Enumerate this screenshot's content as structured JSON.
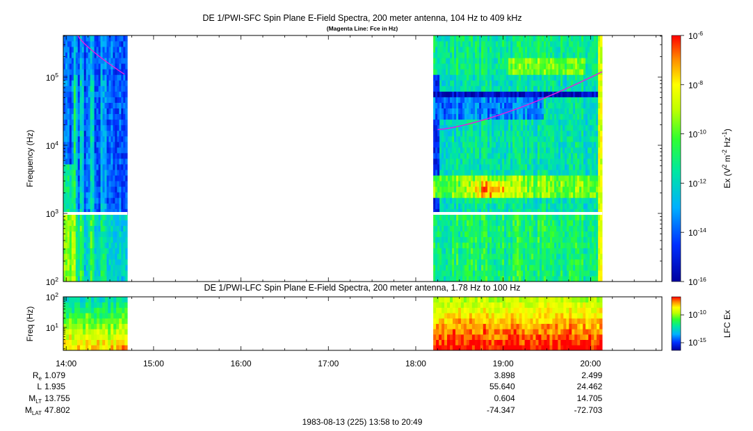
{
  "chart_data": [
    {
      "type": "heatmap",
      "title": "DE 1/PWI-SFC  Spin Plane E-Field Spectra, 200 meter antenna, 104 Hz to 409 kHz",
      "subtitle": "(Magenta Line: Fce in Hz)",
      "ylabel": "Frequency (Hz)",
      "yscale": "log",
      "ylim": [
        100,
        409000
      ],
      "ytick_labels": [
        {
          "base": "10",
          "exp": "2"
        },
        {
          "base": "10",
          "exp": "3"
        },
        {
          "base": "10",
          "exp": "4"
        },
        {
          "base": "10",
          "exp": "5"
        }
      ],
      "colorbar": {
        "label_parts": [
          "Ex (V",
          "2",
          " m",
          "-2",
          " Hz",
          "-1",
          ")"
        ],
        "scale": "log",
        "range": [
          1e-16,
          1e-06
        ],
        "tick_labels": [
          {
            "base": "10",
            "exp": "-6"
          },
          {
            "base": "10",
            "exp": "-8"
          },
          {
            "base": "10",
            "exp": "-10"
          },
          {
            "base": "10",
            "exp": "-12"
          },
          {
            "base": "10",
            "exp": "-14"
          },
          {
            "base": "10",
            "exp": "-16"
          }
        ]
      },
      "data_coverage_utc": [
        [
          "13:58",
          "14:42"
        ],
        [
          "18:12",
          "20:08"
        ]
      ],
      "fce_line": {
        "color": "#e020e0",
        "segments": [
          {
            "t": [
              "14:08",
              "14:40"
            ],
            "freq_hz": [
              409000,
              110000
            ]
          },
          {
            "t": [
              "18:15",
              "20:08"
            ],
            "freq_hz": [
              17000,
              120000
            ]
          }
        ]
      }
    },
    {
      "type": "heatmap",
      "title": "DE 1/PWI-LFC  Spin Plane E-Field Spectra, 200 meter antenna, 1.78 Hz to 100 Hz",
      "ylabel": "Freq (Hz)",
      "yscale": "log",
      "ylim": [
        1.78,
        100
      ],
      "ytick_labels": [
        {
          "base": "10",
          "exp": "1"
        },
        {
          "base": "10",
          "exp": "2"
        }
      ],
      "colorbar": {
        "label": "LFC Ex",
        "scale": "log",
        "tick_labels": [
          {
            "base": "10",
            "exp": "-10"
          },
          {
            "base": "10",
            "exp": "-15"
          }
        ]
      },
      "data_coverage_utc": [
        [
          "13:58",
          "14:42"
        ],
        [
          "18:12",
          "20:08"
        ]
      ]
    }
  ],
  "x_axis": {
    "start": "13:58",
    "end": "20:49",
    "tick_labels": [
      "14:00",
      "15:00",
      "16:00",
      "17:00",
      "18:00",
      "19:00",
      "20:00"
    ]
  },
  "ephemeris": {
    "columns": [
      "14:00",
      "19:00",
      "20:00"
    ],
    "rows": [
      {
        "label": "R",
        "sub": "e",
        "values": [
          "1.079",
          "3.898",
          "2.499"
        ]
      },
      {
        "label": "L",
        "sub": "",
        "values": [
          "1.935",
          "55.640",
          "24.462"
        ]
      },
      {
        "label": "M",
        "sub": "LT",
        "values": [
          "13.755",
          "0.604",
          "14.705"
        ]
      },
      {
        "label": "M",
        "sub": "LAT",
        "values": [
          "47.802",
          "-74.347",
          "-72.703"
        ]
      }
    ]
  },
  "footer": "1983-08-13 (225) 13:58 to 20:49"
}
